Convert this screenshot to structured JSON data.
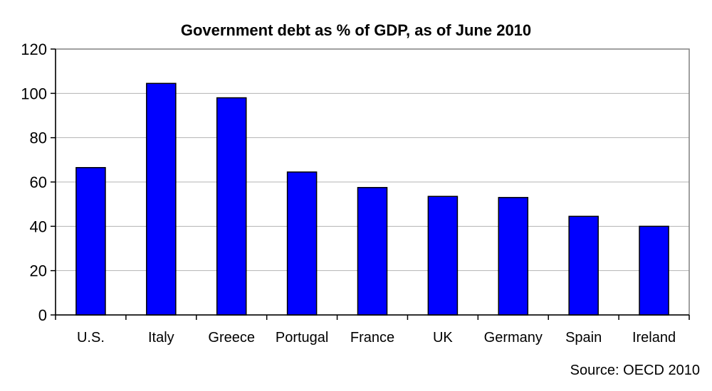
{
  "chart_data": {
    "type": "bar",
    "title": "Government debt as % of GDP, as of June 2010",
    "categories": [
      "U.S.",
      "Italy",
      "Greece",
      "Portugal",
      "France",
      "UK",
      "Germany",
      "Spain",
      "Ireland"
    ],
    "values": [
      66.5,
      104.5,
      98,
      64.5,
      57.5,
      53.5,
      53,
      44.5,
      40
    ],
    "ylim": [
      0,
      120
    ],
    "yticks": [
      0,
      20,
      40,
      60,
      80,
      100,
      120
    ],
    "xlabel": "",
    "ylabel": "",
    "grid": true,
    "legend": "none",
    "bar_color": "#0000FF",
    "source": "Source: OECD 2010"
  }
}
